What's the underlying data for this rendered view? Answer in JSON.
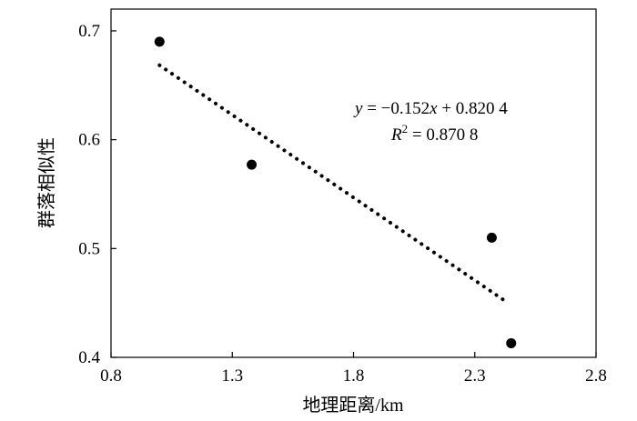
{
  "chart_data": {
    "type": "scatter",
    "xlabel": "地理距离/km",
    "ylabel": "群落相似性",
    "xlim": [
      0.8,
      2.8
    ],
    "ylim": [
      0.4,
      0.72
    ],
    "xticks": [
      "0.8",
      "1.3",
      "1.8",
      "2.3",
      "2.8"
    ],
    "yticks": [
      "0.4",
      "0.5",
      "0.6",
      "0.7"
    ],
    "grid": false,
    "series": [
      {
        "points": [
          {
            "x": 1.0,
            "y": 0.69
          },
          {
            "x": 1.38,
            "y": 0.577
          },
          {
            "x": 2.37,
            "y": 0.51
          },
          {
            "x": 2.45,
            "y": 0.413
          }
        ]
      }
    ],
    "trendline": {
      "style": "dotted",
      "slope": -0.152,
      "intercept": 0.8204,
      "x_range": [
        1.0,
        2.43
      ]
    },
    "annotations": {
      "equation_y": "y",
      "equation_rest": " = −0.152",
      "equation_x": "x",
      "equation_tail": " + 0.820 4",
      "r2_R": "R",
      "r2_sup": "2",
      "r2_tail": " = 0.870 8"
    }
  }
}
